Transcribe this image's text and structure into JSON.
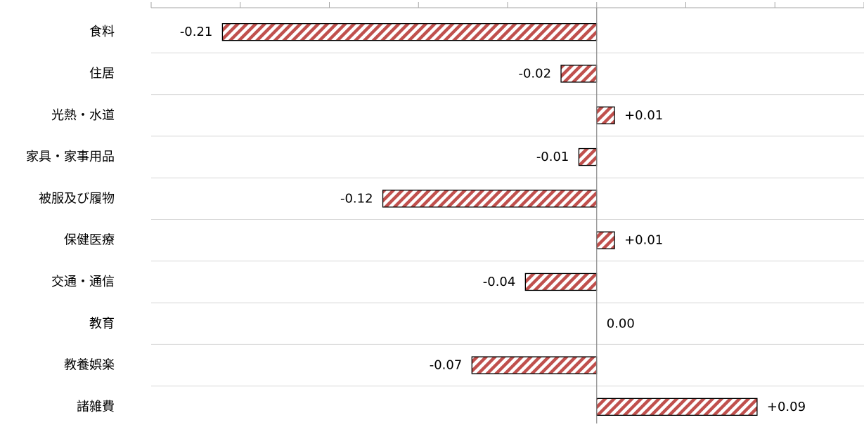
{
  "chart_data": {
    "type": "bar",
    "orientation": "horizontal",
    "categories": [
      "食料",
      "住居",
      "光熱・水道",
      "家具・家事用品",
      "被服及び履物",
      "保健医療",
      "交通・通信",
      "教育",
      "教養娯楽",
      "諸雑費"
    ],
    "values": [
      -0.21,
      -0.02,
      0.01,
      -0.01,
      -0.12,
      0.01,
      -0.04,
      0.0,
      -0.07,
      0.09
    ],
    "value_labels": [
      "-0.21",
      "-0.02",
      "+0.01",
      "-0.01",
      "-0.12",
      "+0.01",
      "-0.04",
      "0.00",
      "-0.07",
      "+0.09"
    ],
    "xlim": [
      -0.25,
      0.15
    ],
    "grid": true,
    "bar_color": "#c0504d",
    "bar_pattern": "diagonal-hatch"
  }
}
